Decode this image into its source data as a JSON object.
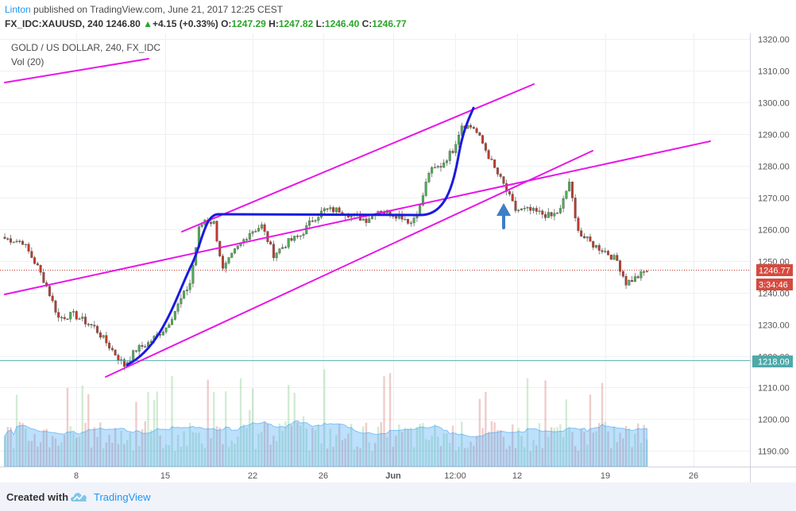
{
  "header": {
    "author": "Linton",
    "published": "published on TradingView.com, June 21, 2017 12:25 CEST",
    "symbol": "FX_IDC:XAUUSD, 240",
    "last": "1246.80",
    "change": "+4.15 (+0.33%)",
    "o_label": "O:",
    "o": "1247.29",
    "h_label": "H:",
    "h": "1247.82",
    "l_label": "L:",
    "l": "1246.40",
    "c_label": "C:",
    "c": "1246.77"
  },
  "chart": {
    "title": "GOLD / US DOLLAR, 240, FX_IDC",
    "indicator": "Vol (20)",
    "price_tag": "1246.77",
    "countdown_tag": "3:34:46",
    "level_tag": "1218.09"
  },
  "chart_data": {
    "type": "candlestick",
    "title": "GOLD / US DOLLAR, 240, FX_IDC",
    "ylim": [
      1185,
      1323
    ],
    "y_ticks": [
      1190,
      1200,
      1210,
      1220,
      1230,
      1240,
      1250,
      1260,
      1270,
      1280,
      1290,
      1300,
      1310,
      1320
    ],
    "x_ticks": [
      "8",
      "15",
      "22",
      "26",
      "Jun",
      "12:00",
      "12",
      "19",
      "26"
    ],
    "last_price": 1246.77,
    "horizontal_level": 1218.09,
    "anchors": [
      {
        "x": 0,
        "y": 1257
      },
      {
        "x": 6,
        "y": 1256
      },
      {
        "x": 11,
        "y": 1248
      },
      {
        "x": 14,
        "y": 1242
      },
      {
        "x": 18,
        "y": 1232
      },
      {
        "x": 23,
        "y": 1233
      },
      {
        "x": 30,
        "y": 1229
      },
      {
        "x": 35,
        "y": 1223
      },
      {
        "x": 40,
        "y": 1217
      },
      {
        "x": 44,
        "y": 1222
      },
      {
        "x": 48,
        "y": 1224
      },
      {
        "x": 54,
        "y": 1229
      },
      {
        "x": 58,
        "y": 1236
      },
      {
        "x": 62,
        "y": 1243
      },
      {
        "x": 65,
        "y": 1260
      },
      {
        "x": 67,
        "y": 1263
      },
      {
        "x": 70,
        "y": 1262
      },
      {
        "x": 73,
        "y": 1247
      },
      {
        "x": 77,
        "y": 1253
      },
      {
        "x": 82,
        "y": 1259
      },
      {
        "x": 86,
        "y": 1261
      },
      {
        "x": 90,
        "y": 1252
      },
      {
        "x": 95,
        "y": 1256
      },
      {
        "x": 99,
        "y": 1258
      },
      {
        "x": 103,
        "y": 1263
      },
      {
        "x": 107,
        "y": 1266
      },
      {
        "x": 112,
        "y": 1266
      },
      {
        "x": 117,
        "y": 1264
      },
      {
        "x": 121,
        "y": 1263
      },
      {
        "x": 125,
        "y": 1266
      },
      {
        "x": 129,
        "y": 1265
      },
      {
        "x": 133,
        "y": 1264
      },
      {
        "x": 136,
        "y": 1262
      },
      {
        "x": 139,
        "y": 1267
      },
      {
        "x": 142,
        "y": 1278
      },
      {
        "x": 146,
        "y": 1280
      },
      {
        "x": 150,
        "y": 1285
      },
      {
        "x": 153,
        "y": 1293
      },
      {
        "x": 157,
        "y": 1292
      },
      {
        "x": 160,
        "y": 1287
      },
      {
        "x": 164,
        "y": 1279
      },
      {
        "x": 167,
        "y": 1274
      },
      {
        "x": 171,
        "y": 1266
      },
      {
        "x": 175,
        "y": 1266
      },
      {
        "x": 179,
        "y": 1265
      },
      {
        "x": 183,
        "y": 1264
      },
      {
        "x": 186,
        "y": 1266
      },
      {
        "x": 189,
        "y": 1275
      },
      {
        "x": 191,
        "y": 1263
      },
      {
        "x": 193,
        "y": 1258
      },
      {
        "x": 197,
        "y": 1255
      },
      {
        "x": 201,
        "y": 1253
      },
      {
        "x": 205,
        "y": 1250
      },
      {
        "x": 208,
        "y": 1243
      },
      {
        "x": 212,
        "y": 1245
      },
      {
        "x": 215,
        "y": 1247
      }
    ],
    "volume_ylim": [
      0,
      32
    ],
    "volume_ma_period": 20
  },
  "footer": {
    "created": "Created with",
    "brand": "TradingView"
  },
  "colors": {
    "up": "#4caf50",
    "down": "#c0392b",
    "trendline": "#e815e8",
    "curve": "#1a1ae0",
    "arrow": "#3d7fc6",
    "level": "#4fa9a9",
    "price": "#d64a3f"
  }
}
